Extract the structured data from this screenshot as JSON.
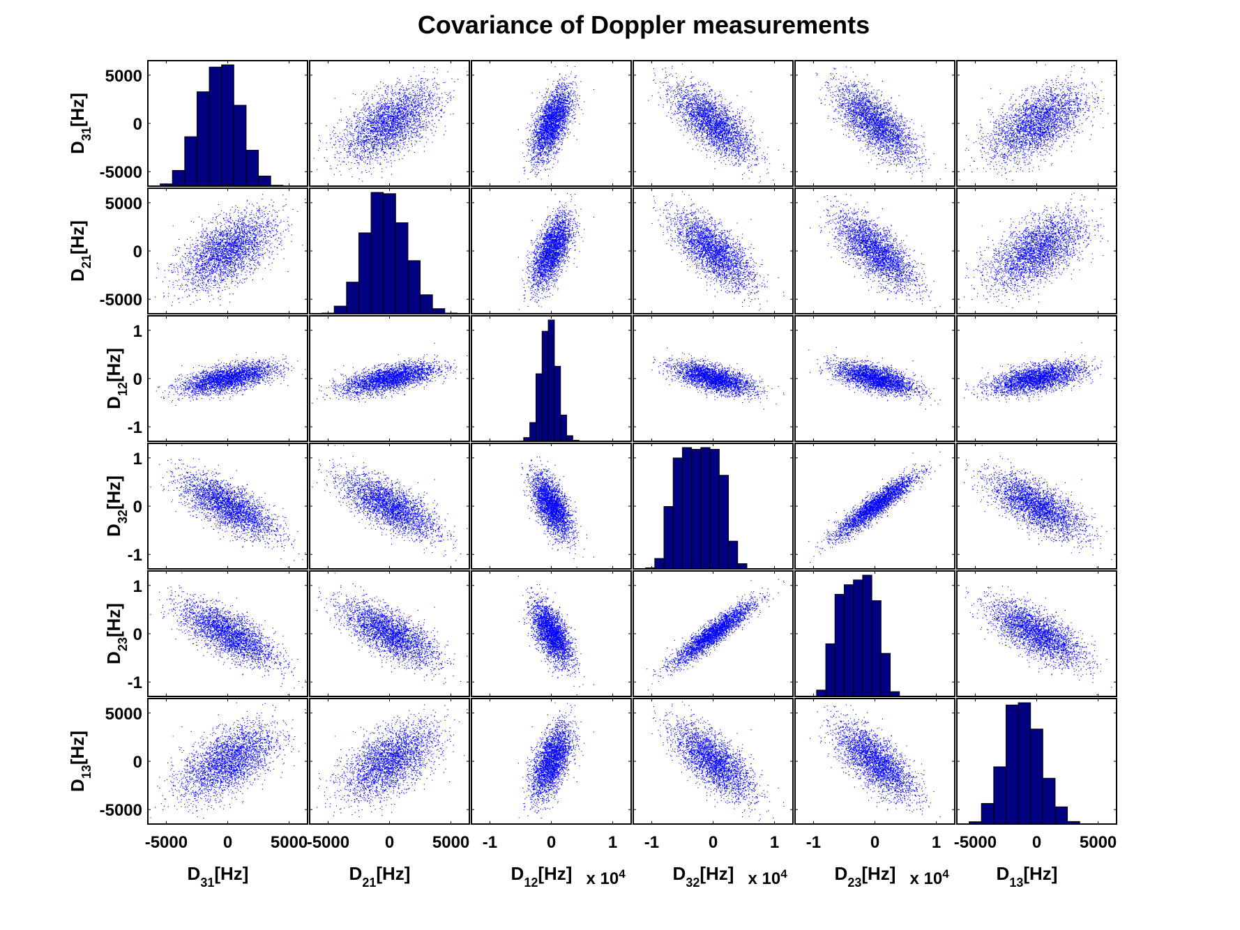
{
  "chart_data": {
    "type": "scatter",
    "title": "Covariance of Doppler measurements",
    "variables": [
      {
        "base": "D",
        "sub": "31",
        "unit": "[Hz]",
        "ylim": [
          -6500,
          6500
        ],
        "xlim": [
          -6500,
          6500
        ],
        "yticks": [
          -5000,
          0,
          5000
        ],
        "xticks": [
          -5000,
          0,
          5000
        ],
        "tick_labels": [
          "-5000",
          "0",
          "5000"
        ],
        "multiplier": "",
        "sigma": 1900
      },
      {
        "base": "D",
        "sub": "21",
        "unit": "[Hz]",
        "ylim": [
          -6500,
          6500
        ],
        "xlim": [
          -6500,
          6500
        ],
        "yticks": [
          -5000,
          0,
          5000
        ],
        "xticks": [
          -5000,
          0,
          5000
        ],
        "tick_labels": [
          "-5000",
          "0",
          "5000"
        ],
        "multiplier": "",
        "sigma": 1900
      },
      {
        "base": "D",
        "sub": "12",
        "unit": "[Hz]",
        "ylim": [
          -1.3,
          1.3
        ],
        "xlim": [
          -1.3,
          1.3
        ],
        "yticks": [
          -1,
          0,
          1
        ],
        "xticks": [
          -1,
          0,
          1
        ],
        "tick_labels": [
          "-1",
          "0",
          "1"
        ],
        "multiplier": "x 10",
        "multiplier_exp": "4",
        "sigma": 0.16
      },
      {
        "base": "D",
        "sub": "32",
        "unit": "[Hz]",
        "ylim": [
          -1.3,
          1.3
        ],
        "xlim": [
          -1.3,
          1.3
        ],
        "yticks": [
          -1,
          0,
          1
        ],
        "xticks": [
          -1,
          0,
          1
        ],
        "tick_labels": [
          "-1",
          "0",
          "1"
        ],
        "multiplier": "x 10",
        "multiplier_exp": "4",
        "sigma": 0.32
      },
      {
        "base": "D",
        "sub": "23",
        "unit": "[Hz]",
        "ylim": [
          -1.3,
          1.3
        ],
        "xlim": [
          -1.3,
          1.3
        ],
        "yticks": [
          -1,
          0,
          1
        ],
        "xticks": [
          -1,
          0,
          1
        ],
        "tick_labels": [
          "-1",
          "0",
          "1"
        ],
        "multiplier": "x 10",
        "multiplier_exp": "4",
        "sigma": 0.32
      },
      {
        "base": "D",
        "sub": "13",
        "unit": "[Hz]",
        "ylim": [
          -6500,
          6500
        ],
        "xlim": [
          -6500,
          6500
        ],
        "yticks": [
          -5000,
          0,
          5000
        ],
        "xticks": [
          -5000,
          0,
          5000
        ],
        "tick_labels": [
          "-5000",
          "0",
          "5000"
        ],
        "multiplier": "",
        "sigma": 1900
      }
    ],
    "correlation": [
      [
        1.0,
        0.55,
        0.6,
        -0.7,
        -0.7,
        0.55
      ],
      [
        0.55,
        1.0,
        0.6,
        -0.7,
        -0.7,
        0.55
      ],
      [
        0.6,
        0.6,
        1.0,
        -0.6,
        -0.6,
        0.55
      ],
      [
        -0.7,
        -0.7,
        -0.6,
        1.0,
        0.92,
        -0.7
      ],
      [
        -0.7,
        -0.7,
        -0.6,
        0.92,
        1.0,
        -0.7
      ],
      [
        0.55,
        0.55,
        0.55,
        -0.7,
        -0.7,
        1.0
      ]
    ],
    "points_per_panel": 3000,
    "histograms": [
      {
        "edges": [
          -6500,
          -5500,
          -4500,
          -3500,
          -2500,
          -1500,
          -500,
          500,
          1500,
          2500,
          3500,
          4500,
          5500
        ],
        "counts": [
          2,
          20,
          140,
          440,
          840,
          1060,
          1080,
          720,
          320,
          90,
          8,
          0
        ]
      },
      {
        "edges": [
          -6500,
          -5500,
          -4500,
          -3500,
          -2500,
          -1500,
          -500,
          500,
          1500,
          2500,
          3500,
          4500,
          5500
        ],
        "counts": [
          0,
          5,
          60,
          250,
          640,
          960,
          950,
          720,
          420,
          150,
          40,
          5
        ]
      },
      {
        "edges": [
          -0.55,
          -0.45,
          -0.35,
          -0.25,
          -0.15,
          -0.05,
          0.05,
          0.15,
          0.25,
          0.35,
          0.45,
          0.55
        ],
        "counts": [
          3,
          30,
          150,
          540,
          880,
          970,
          600,
          210,
          45,
          8,
          0
        ]
      },
      {
        "edges": [
          -1.1,
          -0.95,
          -0.8,
          -0.65,
          -0.5,
          -0.35,
          -0.2,
          -0.05,
          0.1,
          0.25,
          0.4,
          0.55,
          0.7,
          0.85
        ],
        "counts": [
          6,
          60,
          360,
          640,
          700,
          690,
          700,
          690,
          540,
          160,
          30,
          0,
          0
        ]
      },
      {
        "edges": [
          -1.1,
          -0.95,
          -0.8,
          -0.65,
          -0.5,
          -0.35,
          -0.2,
          -0.05,
          0.1,
          0.25,
          0.4,
          0.55,
          0.7,
          0.85
        ],
        "counts": [
          0,
          40,
          330,
          640,
          700,
          730,
          760,
          600,
          270,
          30,
          0,
          0,
          0
        ]
      },
      {
        "edges": [
          -6500,
          -5500,
          -4500,
          -3500,
          -2500,
          -1500,
          -500,
          500,
          1500,
          2500,
          3500,
          4500,
          5500
        ],
        "counts": [
          2,
          20,
          180,
          500,
          1040,
          1060,
          830,
          400,
          150,
          22,
          2,
          0
        ]
      }
    ],
    "colors": {
      "scatter": "#0000ff",
      "hist_fill": "#000080",
      "hist_edge": "#000000"
    }
  }
}
